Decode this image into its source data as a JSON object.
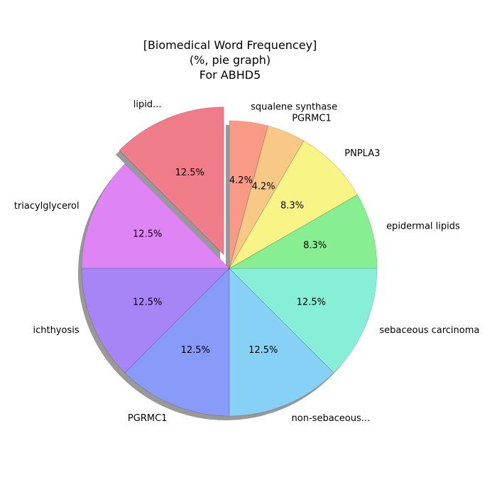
{
  "chart_data": {
    "type": "pie",
    "title": [
      "[Biomedical Word Frequencey]",
      "(%, pie graph)",
      "For ABHD5"
    ],
    "unit": "%",
    "start_angle_deg": 90,
    "direction": "counterclockwise",
    "shadow": true,
    "slices": [
      {
        "label": "lipid...",
        "value": 12.5,
        "pct_label": "12.5%",
        "color": "#f07b89",
        "exploded": true
      },
      {
        "label": "triacylglycerol",
        "value": 12.5,
        "pct_label": "12.5%",
        "color": "#de84f5",
        "exploded": false
      },
      {
        "label": "ichthyosis",
        "value": 12.5,
        "pct_label": "12.5%",
        "color": "#a885f6",
        "exploded": false
      },
      {
        "label": "PGRMC1",
        "value": 12.5,
        "pct_label": "12.5%",
        "color": "#889bf8",
        "exploded": false
      },
      {
        "label": "non-sebaceous...",
        "value": 12.5,
        "pct_label": "12.5%",
        "color": "#87d1f7",
        "exploded": false
      },
      {
        "label": "sebaceous carcinoma",
        "value": 12.5,
        "pct_label": "12.5%",
        "color": "#87eed8",
        "exploded": false
      },
      {
        "label": "epidermal lipids",
        "value": 8.3,
        "pct_label": "8.3%",
        "color": "#87ef91",
        "exploded": false
      },
      {
        "label": "PNPLA3",
        "value": 8.3,
        "pct_label": "8.3%",
        "color": "#f8f486",
        "exploded": false
      },
      {
        "label": "PGRMC1",
        "value": 4.2,
        "pct_label": "4.2%",
        "color": "#f8c986",
        "exploded": false
      },
      {
        "label": "squalene synthase",
        "value": 4.2,
        "pct_label": "4.2%",
        "color": "#f89a86",
        "exploded": false
      }
    ]
  }
}
